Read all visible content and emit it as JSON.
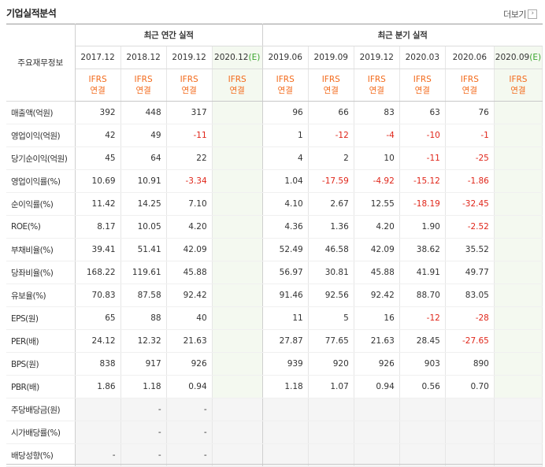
{
  "header": {
    "title": "기업실적분석",
    "more_label": "더보기"
  },
  "table": {
    "row_header_label": "주요재무정보",
    "annual_group_label": "최근 연간 실적",
    "quarter_group_label": "최근 분기 실적",
    "annual_periods": [
      "2017.12",
      "2018.12",
      "2019.12",
      "2020.12"
    ],
    "quarter_periods": [
      "2019.06",
      "2019.09",
      "2019.12",
      "2020.03",
      "2020.06",
      "2020.09"
    ],
    "estimate_mark": "(E)",
    "ifrs_label": "IFRS",
    "consolidated_label": "연결",
    "rows": [
      {
        "label": "매출액(억원)",
        "annual": [
          "392",
          "448",
          "317",
          ""
        ],
        "quarter": [
          "96",
          "66",
          "83",
          "63",
          "76",
          ""
        ]
      },
      {
        "label": "영업이익(억원)",
        "annual": [
          "42",
          "49",
          "-11",
          ""
        ],
        "quarter": [
          "1",
          "-12",
          "-4",
          "-10",
          "-1",
          ""
        ]
      },
      {
        "label": "당기순이익(억원)",
        "annual": [
          "45",
          "64",
          "22",
          ""
        ],
        "quarter": [
          "4",
          "2",
          "10",
          "-11",
          "-25",
          ""
        ]
      },
      {
        "label": "영업이익률(%)",
        "annual": [
          "10.69",
          "10.91",
          "-3.34",
          ""
        ],
        "quarter": [
          "1.04",
          "-17.59",
          "-4.92",
          "-15.12",
          "-1.86",
          ""
        ]
      },
      {
        "label": "순이익률(%)",
        "annual": [
          "11.42",
          "14.25",
          "7.10",
          ""
        ],
        "quarter": [
          "4.10",
          "2.67",
          "12.55",
          "-18.19",
          "-32.45",
          ""
        ]
      },
      {
        "label": "ROE(%)",
        "annual": [
          "8.17",
          "10.05",
          "4.20",
          ""
        ],
        "quarter": [
          "4.36",
          "1.36",
          "4.20",
          "1.90",
          "-2.52",
          ""
        ]
      },
      {
        "label": "부채비율(%)",
        "annual": [
          "39.41",
          "51.41",
          "42.09",
          ""
        ],
        "quarter": [
          "52.49",
          "46.58",
          "42.09",
          "38.62",
          "35.52",
          ""
        ]
      },
      {
        "label": "당좌비율(%)",
        "annual": [
          "168.22",
          "119.61",
          "45.88",
          ""
        ],
        "quarter": [
          "56.97",
          "30.81",
          "45.88",
          "41.91",
          "49.77",
          ""
        ]
      },
      {
        "label": "유보율(%)",
        "annual": [
          "70.83",
          "87.58",
          "92.42",
          ""
        ],
        "quarter": [
          "91.46",
          "92.56",
          "92.42",
          "88.70",
          "83.05",
          ""
        ]
      },
      {
        "label": "EPS(원)",
        "annual": [
          "65",
          "88",
          "40",
          ""
        ],
        "quarter": [
          "11",
          "5",
          "16",
          "-12",
          "-28",
          ""
        ]
      },
      {
        "label": "PER(배)",
        "annual": [
          "24.12",
          "12.32",
          "21.63",
          ""
        ],
        "quarter": [
          "27.87",
          "77.65",
          "21.63",
          "28.45",
          "-27.65",
          ""
        ]
      },
      {
        "label": "BPS(원)",
        "annual": [
          "838",
          "917",
          "926",
          ""
        ],
        "quarter": [
          "939",
          "920",
          "926",
          "903",
          "890",
          ""
        ]
      },
      {
        "label": "PBR(배)",
        "annual": [
          "1.86",
          "1.18",
          "0.94",
          ""
        ],
        "quarter": [
          "1.18",
          "1.07",
          "0.94",
          "0.56",
          "0.70",
          ""
        ]
      },
      {
        "label": "주당배당금(원)",
        "annual": [
          "",
          "-",
          "-",
          ""
        ],
        "quarter": [
          "",
          "",
          "",
          "",
          "",
          ""
        ]
      },
      {
        "label": "시가배당률(%)",
        "annual": [
          "",
          "-",
          "-",
          ""
        ],
        "quarter": [
          "",
          "",
          "",
          "",
          "",
          ""
        ]
      },
      {
        "label": "배당성향(%)",
        "annual": [
          "-",
          "-",
          "-",
          ""
        ],
        "quarter": [
          "",
          "",
          "",
          "",
          "",
          ""
        ]
      }
    ],
    "group_starts": [
      0,
      3,
      6,
      9,
      13
    ],
    "colors": {
      "negative": "#e0261a",
      "ifrs": "#f36a1b",
      "estimate_mark": "#3aa52e",
      "estimate_bg": "#f4f9f0"
    }
  }
}
